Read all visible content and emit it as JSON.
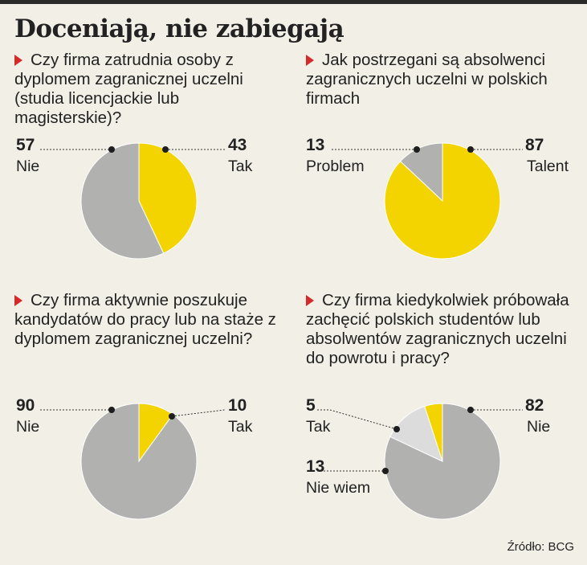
{
  "title": "Doceniają, nie zabiegają",
  "source": "Źródło: BCG",
  "colors": {
    "accent": "#d42a2a",
    "yellow": "#f4d400",
    "gray": "#b1b1af",
    "light": "#dcdcdc",
    "background": "#f1efe6"
  },
  "chart_data": [
    {
      "type": "pie",
      "title": "Czy firma zatrudnia osoby z dyplomem zagranicznej uczelni (studia licencjackie lub magisterskie)?",
      "slices": [
        {
          "label": "Tak",
          "value": 43,
          "color": "#f4d400"
        },
        {
          "label": "Nie",
          "value": 57,
          "color": "#b1b1af"
        }
      ]
    },
    {
      "type": "pie",
      "title": "Jak postrzegani są absolwenci zagranicznych uczelni w polskich firmach",
      "slices": [
        {
          "label": "Talent",
          "value": 87,
          "color": "#f4d400"
        },
        {
          "label": "Problem",
          "value": 13,
          "color": "#b1b1af"
        }
      ]
    },
    {
      "type": "pie",
      "title": "Czy firma aktywnie poszukuje kandydatów do pracy lub na staże z dyplomem zagranicznej uczelni?",
      "slices": [
        {
          "label": "Tak",
          "value": 10,
          "color": "#f4d400"
        },
        {
          "label": "Nie",
          "value": 90,
          "color": "#b1b1af"
        }
      ]
    },
    {
      "type": "pie",
      "title": "Czy firma kiedykolwiek próbowała zachęcić polskich studentów lub absolwentów zagranicznych uczelni do powrotu i pracy?",
      "slices": [
        {
          "label": "Nie",
          "value": 82,
          "color": "#b1b1af"
        },
        {
          "label": "Nie wiem",
          "value": 13,
          "color": "#dcdcdc"
        },
        {
          "label": "Tak",
          "value": 5,
          "color": "#f4d400"
        }
      ]
    }
  ]
}
